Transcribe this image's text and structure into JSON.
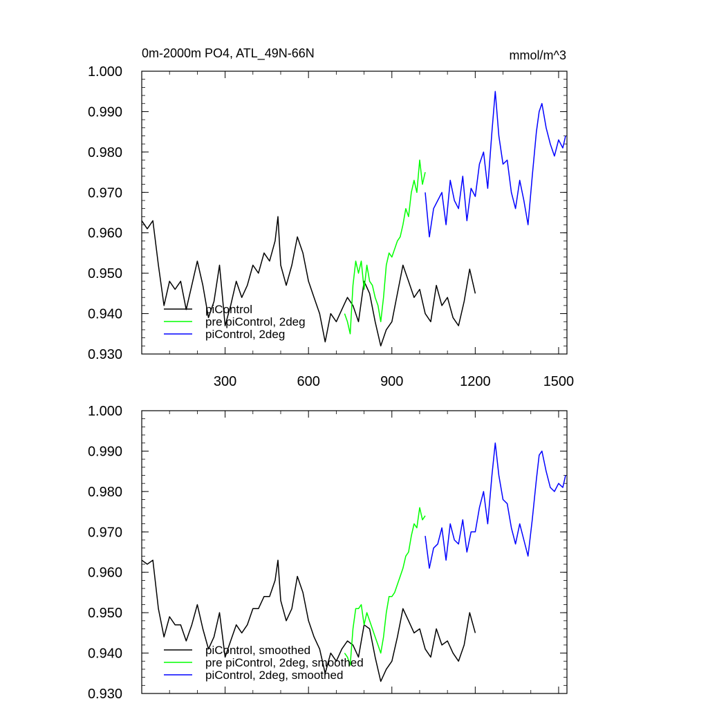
{
  "header": {
    "title": "0m-2000m PO4, ATL_49N-66N",
    "units": "mmol/m^3"
  },
  "chart_data": [
    {
      "type": "line",
      "xlim": [
        0,
        1530
      ],
      "ylim": [
        0.93,
        1.0
      ],
      "xticks": [
        300,
        600,
        900,
        1200,
        1500
      ],
      "xtick_labels": [
        "300",
        "600",
        "900",
        "1200",
        "1500"
      ],
      "yticks": [
        0.93,
        0.94,
        0.95,
        0.96,
        0.97,
        0.98,
        0.99,
        1.0
      ],
      "ytick_labels": [
        "0.930",
        "0.940",
        "0.950",
        "0.960",
        "0.970",
        "0.980",
        "0.990",
        "1.000"
      ],
      "legend_position": "bottom-left",
      "series": [
        {
          "name": "piControl",
          "color": "#000000",
          "x": [
            0,
            20,
            40,
            60,
            80,
            100,
            120,
            140,
            160,
            180,
            200,
            220,
            240,
            260,
            280,
            300,
            320,
            340,
            360,
            380,
            400,
            420,
            440,
            460,
            480,
            490,
            500,
            520,
            540,
            560,
            580,
            600,
            620,
            640,
            660,
            680,
            700,
            720,
            740,
            760,
            780,
            800,
            820,
            840,
            860,
            880,
            900,
            920,
            940,
            960,
            980,
            1000,
            1020,
            1040,
            1060,
            1080,
            1100,
            1120,
            1140,
            1160,
            1180,
            1200
          ],
          "y": [
            0.963,
            0.961,
            0.963,
            0.952,
            0.942,
            0.948,
            0.946,
            0.948,
            0.941,
            0.947,
            0.953,
            0.947,
            0.939,
            0.943,
            0.952,
            0.937,
            0.942,
            0.948,
            0.944,
            0.947,
            0.952,
            0.95,
            0.955,
            0.953,
            0.958,
            0.964,
            0.952,
            0.947,
            0.952,
            0.959,
            0.955,
            0.948,
            0.944,
            0.94,
            0.933,
            0.94,
            0.938,
            0.941,
            0.944,
            0.942,
            0.938,
            0.948,
            0.945,
            0.938,
            0.932,
            0.936,
            0.938,
            0.945,
            0.952,
            0.948,
            0.944,
            0.946,
            0.94,
            0.938,
            0.947,
            0.942,
            0.944,
            0.939,
            0.937,
            0.943,
            0.951,
            0.945
          ]
        },
        {
          "name": "pre piControl, 2deg",
          "color": "#00ff00",
          "x": [
            730,
            740,
            750,
            760,
            770,
            780,
            790,
            800,
            810,
            820,
            830,
            840,
            850,
            860,
            870,
            880,
            890,
            900,
            910,
            920,
            930,
            940,
            950,
            960,
            970,
            980,
            990,
            1000,
            1010,
            1020
          ],
          "y": [
            0.94,
            0.938,
            0.935,
            0.947,
            0.953,
            0.95,
            0.953,
            0.946,
            0.952,
            0.948,
            0.947,
            0.944,
            0.942,
            0.938,
            0.944,
            0.952,
            0.955,
            0.954,
            0.956,
            0.958,
            0.959,
            0.962,
            0.966,
            0.964,
            0.97,
            0.973,
            0.97,
            0.978,
            0.972,
            0.975
          ]
        },
        {
          "name": "piControl, 2deg",
          "color": "#0000ff",
          "x": [
            1020,
            1035,
            1050,
            1065,
            1080,
            1095,
            1110,
            1125,
            1140,
            1155,
            1170,
            1185,
            1200,
            1215,
            1230,
            1245,
            1260,
            1272,
            1285,
            1300,
            1315,
            1330,
            1345,
            1360,
            1375,
            1390,
            1405,
            1420,
            1430,
            1440,
            1455,
            1470,
            1485,
            1500,
            1515,
            1525
          ],
          "y": [
            0.97,
            0.959,
            0.966,
            0.968,
            0.97,
            0.962,
            0.973,
            0.968,
            0.966,
            0.974,
            0.963,
            0.971,
            0.969,
            0.977,
            0.98,
            0.971,
            0.985,
            0.995,
            0.984,
            0.977,
            0.978,
            0.97,
            0.966,
            0.973,
            0.968,
            0.962,
            0.974,
            0.985,
            0.99,
            0.992,
            0.986,
            0.982,
            0.979,
            0.983,
            0.981,
            0.984
          ]
        }
      ]
    },
    {
      "type": "line",
      "xlim": [
        0,
        1530
      ],
      "ylim": [
        0.93,
        1.0
      ],
      "xticks": [
        300,
        600,
        900,
        1200,
        1500
      ],
      "yticks": [
        0.93,
        0.94,
        0.95,
        0.96,
        0.97,
        0.98,
        0.99,
        1.0
      ],
      "ytick_labels": [
        "0.930",
        "0.940",
        "0.950",
        "0.960",
        "0.970",
        "0.980",
        "0.990",
        "1.000"
      ],
      "legend_position": "bottom-left",
      "series": [
        {
          "name": "piControl, smoothed",
          "color": "#000000",
          "x": [
            0,
            20,
            40,
            60,
            80,
            100,
            120,
            140,
            160,
            180,
            200,
            220,
            240,
            260,
            280,
            300,
            320,
            340,
            360,
            380,
            400,
            420,
            440,
            460,
            480,
            490,
            500,
            520,
            540,
            560,
            580,
            600,
            620,
            640,
            660,
            680,
            700,
            720,
            740,
            760,
            780,
            800,
            820,
            840,
            860,
            880,
            900,
            920,
            940,
            960,
            980,
            1000,
            1020,
            1040,
            1060,
            1080,
            1100,
            1120,
            1140,
            1160,
            1180,
            1200
          ],
          "y": [
            0.963,
            0.962,
            0.963,
            0.951,
            0.944,
            0.949,
            0.947,
            0.947,
            0.943,
            0.947,
            0.952,
            0.946,
            0.941,
            0.944,
            0.95,
            0.939,
            0.943,
            0.947,
            0.945,
            0.947,
            0.951,
            0.951,
            0.954,
            0.954,
            0.958,
            0.963,
            0.953,
            0.948,
            0.951,
            0.959,
            0.955,
            0.948,
            0.944,
            0.941,
            0.935,
            0.94,
            0.938,
            0.941,
            0.943,
            0.942,
            0.939,
            0.947,
            0.946,
            0.939,
            0.933,
            0.936,
            0.938,
            0.944,
            0.951,
            0.948,
            0.945,
            0.946,
            0.941,
            0.939,
            0.946,
            0.942,
            0.943,
            0.94,
            0.938,
            0.942,
            0.95,
            0.945
          ]
        },
        {
          "name": "pre piControl, 2deg, smoothed",
          "color": "#00ff00",
          "x": [
            730,
            740,
            750,
            760,
            770,
            780,
            790,
            800,
            810,
            820,
            830,
            840,
            850,
            860,
            870,
            880,
            890,
            900,
            910,
            920,
            930,
            940,
            950,
            960,
            970,
            980,
            990,
            1000,
            1010,
            1020
          ],
          "y": [
            0.94,
            0.939,
            0.937,
            0.946,
            0.951,
            0.951,
            0.952,
            0.947,
            0.95,
            0.948,
            0.946,
            0.944,
            0.942,
            0.94,
            0.944,
            0.95,
            0.954,
            0.954,
            0.955,
            0.957,
            0.959,
            0.961,
            0.964,
            0.965,
            0.969,
            0.972,
            0.971,
            0.976,
            0.973,
            0.974
          ]
        },
        {
          "name": "piControl, 2deg, smoothed",
          "color": "#0000ff",
          "x": [
            1020,
            1035,
            1050,
            1065,
            1080,
            1095,
            1110,
            1125,
            1140,
            1155,
            1170,
            1185,
            1200,
            1215,
            1230,
            1245,
            1260,
            1272,
            1285,
            1300,
            1315,
            1330,
            1345,
            1360,
            1375,
            1390,
            1405,
            1420,
            1430,
            1440,
            1455,
            1470,
            1485,
            1500,
            1515,
            1525
          ],
          "y": [
            0.969,
            0.961,
            0.966,
            0.967,
            0.971,
            0.963,
            0.972,
            0.968,
            0.967,
            0.973,
            0.965,
            0.97,
            0.97,
            0.976,
            0.98,
            0.972,
            0.984,
            0.992,
            0.984,
            0.978,
            0.977,
            0.971,
            0.967,
            0.972,
            0.968,
            0.964,
            0.973,
            0.983,
            0.989,
            0.99,
            0.985,
            0.981,
            0.98,
            0.982,
            0.981,
            0.984
          ]
        }
      ]
    }
  ]
}
